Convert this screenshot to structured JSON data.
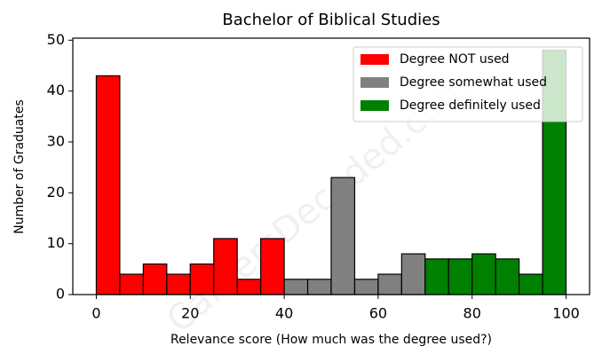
{
  "chart_data": {
    "type": "histogram",
    "title": "Bachelor of Biblical Studies",
    "x_label": "Relevance score (How much was the degree used?)",
    "y_label": "Number of Graduates",
    "watermark": "CareersDecoded.com",
    "series": [
      {
        "name": "Degree NOT used",
        "color": "#ff0000",
        "bins": [
          0,
          5,
          10,
          15,
          20,
          25,
          30,
          35,
          40
        ],
        "values": [
          43,
          4,
          6,
          4,
          6,
          11,
          3,
          11
        ]
      },
      {
        "name": "Degree somewhat used",
        "color": "#808080",
        "bins": [
          40,
          45,
          50,
          55,
          60,
          65,
          70
        ],
        "values": [
          3,
          3,
          23,
          3,
          4,
          8
        ]
      },
      {
        "name": "Degree definitely used",
        "color": "#008000",
        "bins": [
          70,
          75,
          80,
          85,
          90,
          95,
          100
        ],
        "values": [
          7,
          7,
          8,
          7,
          4,
          48
        ]
      }
    ],
    "xlim": [
      -5,
      105
    ],
    "xticks": [
      0,
      20,
      40,
      60,
      80,
      100
    ],
    "ylim": [
      0,
      50.4
    ],
    "yticks": [
      0,
      10,
      20,
      30,
      40,
      50
    ],
    "grid": false,
    "legend": "upper right"
  }
}
